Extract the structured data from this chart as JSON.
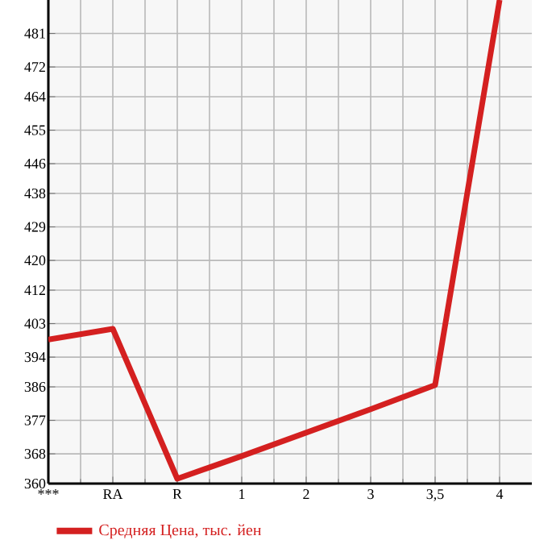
{
  "chart_data": {
    "type": "line",
    "categories": [
      "***",
      "RA",
      "R",
      "1",
      "2",
      "3",
      "3,5",
      "4"
    ],
    "series": [
      {
        "name": "Средняя Цена, тыс. йен",
        "color": "#d42020",
        "values": [
          398.7,
          401.6,
          361.3,
          367.4,
          373.7,
          380.0,
          386.5,
          490
        ]
      }
    ],
    "ylim": [
      360,
      490
    ],
    "yticks": [
      360,
      368,
      377,
      386,
      394,
      403,
      412,
      420,
      429,
      438,
      446,
      455,
      464,
      472,
      481
    ],
    "grid": true,
    "legend": "bottom left",
    "marker": "none",
    "line_style": "solid"
  }
}
